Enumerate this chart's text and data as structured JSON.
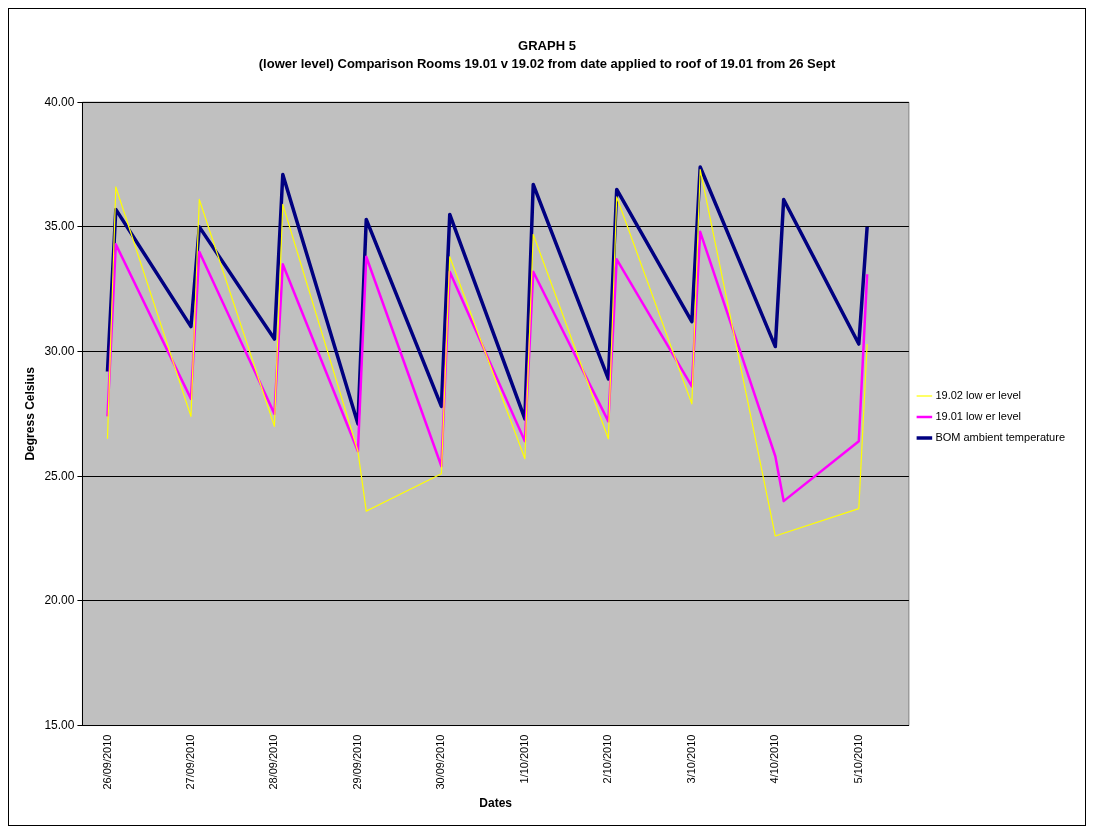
{
  "chart_data": {
    "type": "line",
    "title": "GRAPH 5",
    "subtitle": "(lower level) Comparison Rooms 19.01 v 19.02 from date applied to roof of 19.01 from 26 Sept",
    "xlabel": "Dates",
    "ylabel": "Degress Celsius",
    "categories": [
      null,
      null,
      null,
      "26/09/2010",
      null,
      null,
      null,
      null,
      null,
      null,
      null,
      null,
      null,
      "27/09/2010",
      null,
      null,
      null,
      null,
      null,
      null,
      null,
      null,
      null,
      "28/09/2010",
      null,
      null,
      null,
      null,
      null,
      null,
      null,
      null,
      null,
      "29/09/2010",
      null,
      null,
      null,
      null,
      null,
      null,
      null,
      null,
      null,
      "30/09/2010",
      null,
      null,
      null,
      null,
      null,
      null,
      null,
      null,
      null,
      "1/10/2010",
      null,
      null,
      null,
      null,
      null,
      null,
      null,
      null,
      null,
      "2/10/2010",
      null,
      null,
      null,
      null,
      null,
      null,
      null,
      null,
      null,
      "3/10/2010",
      null,
      null,
      null,
      null,
      null,
      null,
      null,
      null,
      null,
      "4/10/2010",
      null,
      null,
      null,
      null,
      null,
      null,
      null,
      null,
      null,
      "5/10/2010",
      null,
      null,
      null,
      null,
      null,
      null
    ],
    "series": [
      {
        "name": "BOM ambient temperature",
        "color": "#000080",
        "values": [
          null,
          null,
          null,
          29.2,
          35.7,
          null,
          null,
          null,
          null,
          null,
          null,
          null,
          null,
          31.0,
          35.0,
          null,
          null,
          null,
          null,
          null,
          null,
          null,
          null,
          30.5,
          37.1,
          null,
          null,
          null,
          null,
          null,
          null,
          null,
          null,
          27.1,
          35.3,
          null,
          null,
          null,
          null,
          null,
          null,
          null,
          null,
          27.8,
          35.5,
          null,
          null,
          null,
          null,
          null,
          null,
          null,
          null,
          27.3,
          36.7,
          null,
          null,
          null,
          null,
          null,
          null,
          null,
          null,
          28.9,
          36.5,
          null,
          null,
          null,
          null,
          null,
          null,
          null,
          null,
          31.2,
          37.4,
          null,
          null,
          null,
          null,
          null,
          null,
          null,
          null,
          30.2,
          36.1,
          null,
          null,
          null,
          null,
          null,
          null,
          null,
          null,
          30.3,
          35.0,
          null,
          null,
          null,
          null,
          null
        ]
      },
      {
        "name": "19.01 low er level",
        "color": "#ff00ff",
        "values": [
          null,
          null,
          null,
          27.4,
          34.3,
          null,
          null,
          null,
          null,
          null,
          null,
          null,
          null,
          28.1,
          34.0,
          null,
          null,
          null,
          null,
          null,
          null,
          null,
          null,
          27.5,
          33.5,
          null,
          null,
          null,
          null,
          null,
          null,
          null,
          null,
          26.0,
          33.8,
          null,
          null,
          null,
          null,
          null,
          null,
          null,
          null,
          25.4,
          33.2,
          null,
          null,
          null,
          null,
          null,
          null,
          null,
          null,
          26.4,
          33.2,
          null,
          null,
          null,
          null,
          null,
          null,
          null,
          null,
          27.2,
          33.7,
          null,
          null,
          null,
          null,
          null,
          null,
          null,
          null,
          28.6,
          34.8,
          null,
          null,
          null,
          null,
          null,
          null,
          null,
          null,
          25.8,
          24.0,
          null,
          null,
          null,
          null,
          null,
          null,
          null,
          null,
          26.4,
          33.1,
          null,
          null,
          null,
          null,
          null
        ]
      },
      {
        "name": "19.02 low er level",
        "color": "#ffff00",
        "values": [
          null,
          null,
          null,
          26.5,
          36.6,
          null,
          null,
          null,
          null,
          null,
          null,
          null,
          null,
          27.4,
          36.1,
          null,
          null,
          null,
          null,
          null,
          null,
          null,
          null,
          27.0,
          35.9,
          null,
          null,
          null,
          null,
          null,
          null,
          null,
          null,
          26.0,
          23.6,
          null,
          null,
          null,
          null,
          null,
          null,
          null,
          null,
          25.1,
          33.8,
          null,
          null,
          null,
          null,
          null,
          null,
          null,
          null,
          25.7,
          34.7,
          null,
          null,
          null,
          null,
          null,
          null,
          null,
          null,
          26.5,
          36.2,
          null,
          null,
          null,
          null,
          null,
          null,
          null,
          null,
          27.9,
          37.3,
          null,
          null,
          null,
          null,
          null,
          null,
          null,
          null,
          22.6,
          null,
          null,
          null,
          null,
          null,
          null,
          null,
          null,
          null,
          23.7,
          30.3,
          null,
          null,
          null,
          null,
          null
        ]
      }
    ],
    "ylim": [
      15,
      40
    ],
    "yticks": [
      {
        "value": 15,
        "label": "15.00"
      },
      {
        "value": 20,
        "label": "20.00"
      },
      {
        "value": 25,
        "label": "25.00"
      },
      {
        "value": 30,
        "label": "30.00"
      },
      {
        "value": 35,
        "label": "35.00"
      },
      {
        "value": 40,
        "label": "40.00"
      }
    ],
    "grid": "y",
    "legend": "right",
    "marker": "none",
    "line_style": "solid"
  }
}
